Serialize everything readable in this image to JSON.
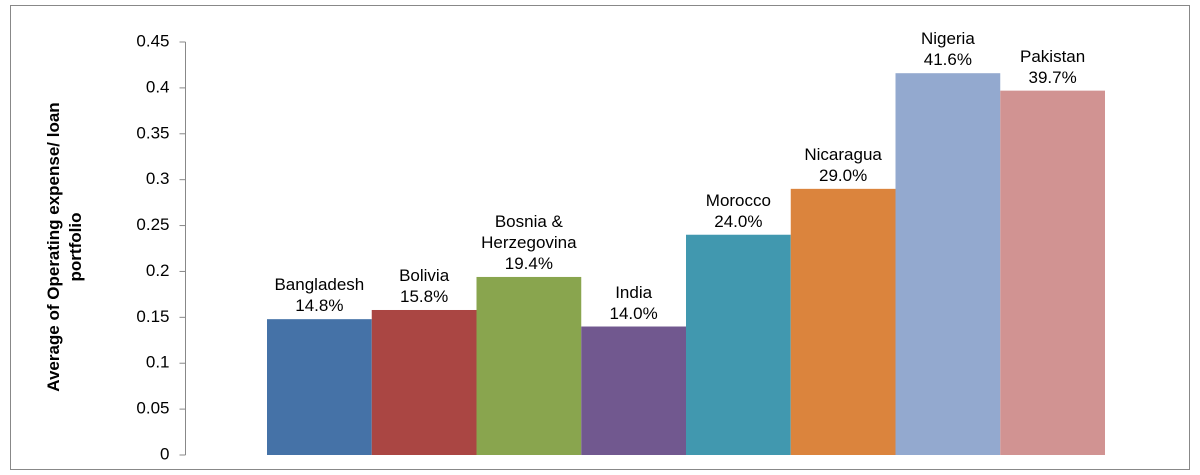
{
  "chart_data": {
    "type": "bar",
    "y_label": "Average of Operating expense/ loan portfolio",
    "categories": [
      "Bangladesh",
      "Bolivia",
      "Bosnia & Herzegovina",
      "India",
      "Morocco",
      "Nicaragua",
      "Nigeria",
      "Pakistan"
    ],
    "values": [
      0.148,
      0.158,
      0.194,
      0.14,
      0.24,
      0.29,
      0.416,
      0.397
    ],
    "value_labels": [
      "14.8%",
      "15.8%",
      "19.4%",
      "14.0%",
      "24.0%",
      "29.0%",
      "41.6%",
      "39.7%"
    ],
    "colors": [
      "#4572a7",
      "#aa4643",
      "#89a54e",
      "#71588f",
      "#4198af",
      "#db843d",
      "#93a9cf",
      "#d19392"
    ],
    "ylim": [
      0,
      0.45
    ],
    "yticks": [
      0,
      0.05,
      0.1,
      0.15,
      0.2,
      0.25,
      0.3,
      0.35,
      0.4,
      0.45
    ]
  }
}
